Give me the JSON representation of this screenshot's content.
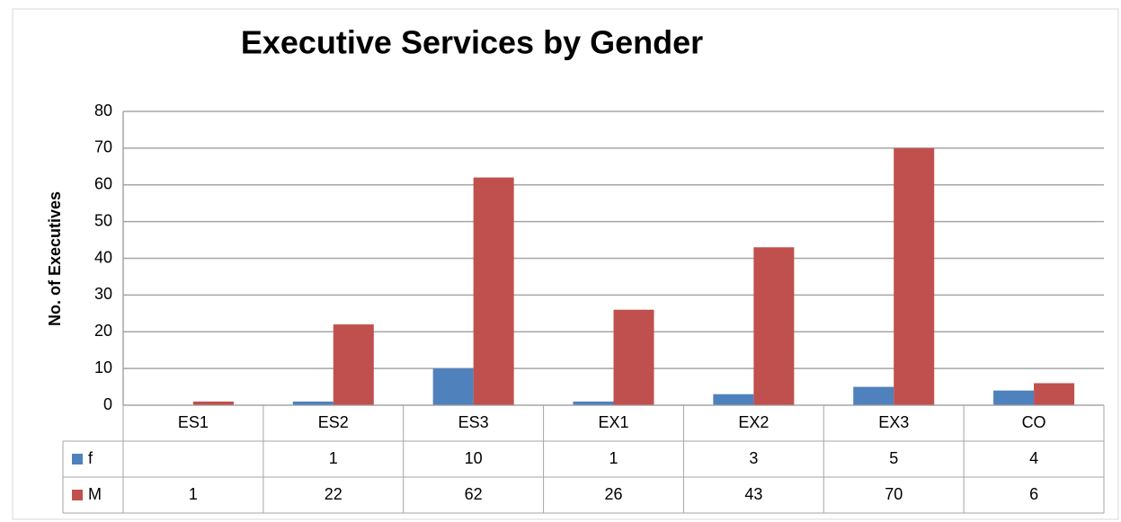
{
  "chart_data": {
    "type": "bar",
    "title": "Executive Services by Gender",
    "y_label": "No. of Executives",
    "categories": [
      "ES1",
      "ES2",
      "ES3",
      "EX1",
      "EX2",
      "EX3",
      "CO"
    ],
    "series": [
      {
        "name": "f",
        "color": "#4f81bd",
        "values": [
          null,
          1,
          10,
          1,
          3,
          5,
          4
        ]
      },
      {
        "name": "M",
        "color": "#c0504d",
        "values": [
          1,
          22,
          62,
          26,
          43,
          70,
          6
        ]
      }
    ],
    "ylim": [
      0,
      80
    ],
    "yticks": [
      0,
      10,
      20,
      30,
      40,
      50,
      60,
      70,
      80
    ],
    "grid": true,
    "data_table": true
  }
}
